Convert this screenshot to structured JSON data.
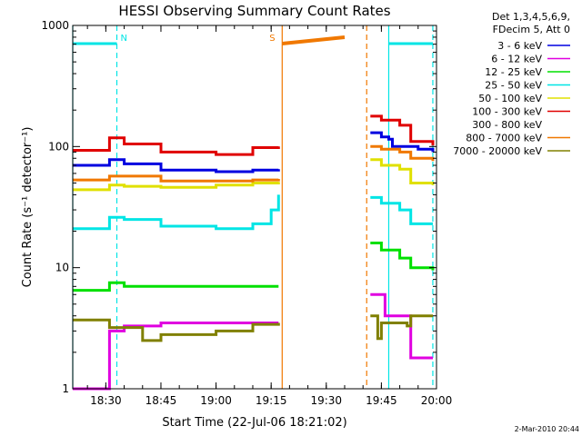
{
  "chart_data": {
    "type": "line",
    "title": "HESSI Observing Summary Count Rates",
    "xlabel": "Start Time (22-Jul-06 18:21:02)",
    "ylabel": "Count Rate (s⁻¹ detector⁻¹)",
    "y_scale": "log",
    "ylim": [
      1,
      1000
    ],
    "xlim": [
      "18:21",
      "20:00"
    ],
    "x_ticks": [
      "18:30",
      "18:45",
      "19:00",
      "19:15",
      "19:30",
      "19:45",
      "20:00"
    ],
    "y_ticks": [
      "1",
      "10",
      "100",
      "1000"
    ],
    "legend_header": [
      "Det 1,3,4,5,6,9,",
      "FDecim 5, Att 0"
    ],
    "legend_position": "right",
    "timestamp": "2-Mar-2010 20:44",
    "flags": [
      {
        "label": "N",
        "color": "#00e5e5",
        "style": "solid",
        "segments": [
          [
            "18:21",
            "18:33"
          ],
          [
            "19:47",
            "19:59"
          ]
        ]
      },
      {
        "label": "S",
        "color": "#f07800",
        "style": "thick",
        "segments": [
          [
            "19:18",
            "19:35"
          ]
        ]
      }
    ],
    "vlines": [
      {
        "time": "18:21",
        "color": "#00e5e5",
        "style": "solid"
      },
      {
        "time": "18:33",
        "color": "#00e5e5",
        "style": "dashed"
      },
      {
        "time": "19:47",
        "color": "#00e5e5",
        "style": "solid"
      },
      {
        "time": "19:59",
        "color": "#00e5e5",
        "style": "dashed"
      },
      {
        "time": "19:18",
        "color": "#f07800",
        "style": "solid"
      },
      {
        "time": "19:41",
        "color": "#f07800",
        "style": "dashed"
      }
    ],
    "series": [
      {
        "name": "3 - 6 keV",
        "color": "#0000e0",
        "x": [
          "18:21",
          "18:30",
          "18:31",
          "18:35",
          "18:45",
          "19:00",
          "19:10",
          "19:17",
          "19:18",
          "19:41",
          "19:42",
          "19:45",
          "19:47",
          "19:48",
          "19:55",
          "19:59"
        ],
        "values": [
          70,
          70,
          78,
          72,
          64,
          62,
          64,
          65,
          null,
          null,
          130,
          120,
          115,
          100,
          95,
          90
        ]
      },
      {
        "name": "6 - 12 keV",
        "color": "#e000e0",
        "x": [
          "18:21",
          "18:30",
          "18:31",
          "18:35",
          "18:45",
          "19:00",
          "19:15",
          "19:17",
          "19:18",
          "19:41",
          "19:42",
          "19:45",
          "19:46",
          "19:52",
          "19:53",
          "19:59"
        ],
        "values": [
          1,
          1,
          3,
          3.3,
          3.5,
          3.5,
          3.5,
          3.5,
          null,
          null,
          6,
          6,
          4,
          4,
          1.8,
          1.8
        ]
      },
      {
        "name": "12 - 25 keV",
        "color": "#00e000",
        "x": [
          "18:21",
          "18:30",
          "18:31",
          "18:35",
          "18:45",
          "19:00",
          "19:10",
          "19:17",
          "19:18",
          "19:41",
          "19:42",
          "19:45",
          "19:50",
          "19:53",
          "19:59"
        ],
        "values": [
          6.5,
          6.5,
          7.5,
          7,
          7,
          7,
          7,
          7,
          null,
          null,
          16,
          14,
          12,
          10,
          9.5
        ]
      },
      {
        "name": "25 - 50 keV",
        "color": "#00e5e5",
        "x": [
          "18:21",
          "18:30",
          "18:31",
          "18:35",
          "18:45",
          "19:00",
          "19:10",
          "19:15",
          "19:17",
          "19:18",
          "19:41",
          "19:42",
          "19:45",
          "19:50",
          "19:53",
          "19:59"
        ],
        "values": [
          21,
          21,
          26,
          25,
          22,
          21,
          23,
          30,
          40,
          null,
          null,
          38,
          34,
          30,
          23,
          23
        ]
      },
      {
        "name": "50 - 100 keV",
        "color": "#e0e000",
        "x": [
          "18:21",
          "18:30",
          "18:31",
          "18:35",
          "18:45",
          "19:00",
          "19:10",
          "19:17",
          "19:18",
          "19:41",
          "19:42",
          "19:45",
          "19:50",
          "19:53",
          "19:59"
        ],
        "values": [
          44,
          44,
          48,
          47,
          46,
          48,
          50,
          51,
          null,
          null,
          78,
          70,
          65,
          50,
          48
        ]
      },
      {
        "name": "100 - 300 keV",
        "color": "#e00000",
        "x": [
          "18:21",
          "18:30",
          "18:31",
          "18:35",
          "18:45",
          "19:00",
          "19:10",
          "19:17",
          "19:18",
          "19:41",
          "19:42",
          "19:45",
          "19:50",
          "19:53",
          "19:59"
        ],
        "values": [
          93,
          93,
          118,
          105,
          90,
          86,
          98,
          100,
          null,
          null,
          178,
          165,
          150,
          110,
          102
        ]
      },
      {
        "name": "300 - 800 keV",
        "color": "#ffffff",
        "x": [
          "18:21",
          "19:59"
        ],
        "values": [
          null,
          null
        ]
      },
      {
        "name": "800 - 7000 keV",
        "color": "#f07800",
        "x": [
          "18:21",
          "18:30",
          "18:31",
          "18:45",
          "19:00",
          "19:10",
          "19:17",
          "19:18",
          "19:41",
          "19:42",
          "19:45",
          "19:50",
          "19:53",
          "19:59"
        ],
        "values": [
          53,
          53,
          57,
          52,
          52,
          53,
          54,
          null,
          null,
          100,
          95,
          90,
          80,
          76
        ]
      },
      {
        "name": "7000 - 20000 keV",
        "color": "#808000",
        "x": [
          "18:21",
          "18:30",
          "18:31",
          "18:40",
          "18:45",
          "19:00",
          "19:10",
          "19:17",
          "19:18",
          "19:41",
          "19:42",
          "19:44",
          "19:45",
          "19:52",
          "19:53",
          "19:59"
        ],
        "values": [
          3.7,
          3.7,
          3.2,
          2.5,
          2.8,
          3,
          3.4,
          3.5,
          null,
          null,
          4,
          2.6,
          3.5,
          3.3,
          4,
          4
        ]
      }
    ]
  }
}
